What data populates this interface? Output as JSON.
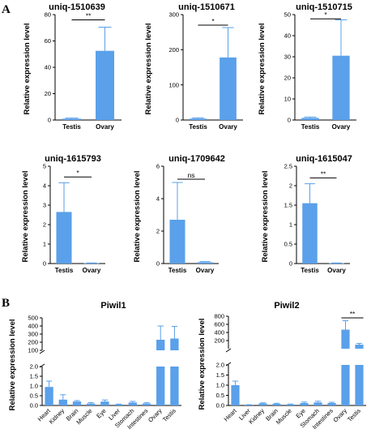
{
  "figure": {
    "panel_a": "A",
    "panel_b": "B",
    "accent": "#5aa0ea",
    "axis_color": "#000000"
  },
  "chart_data": [
    {
      "id": "a1",
      "type": "bar",
      "title": "uniq-1510639",
      "ylabel": "Relative expression level",
      "categories": [
        "Testis",
        "Ovary"
      ],
      "values": [
        1,
        52.5
      ],
      "errors": [
        0.5,
        18
      ],
      "ylim": [
        0,
        80
      ],
      "yticks": [
        0,
        20,
        40,
        60,
        80
      ],
      "significance": {
        "label": "**",
        "from": 0,
        "to": 1,
        "y": 76
      }
    },
    {
      "id": "a2",
      "type": "bar",
      "title": "uniq-1510671",
      "ylabel": "Relative expression level",
      "categories": [
        "Testis",
        "Ovary"
      ],
      "values": [
        4,
        178
      ],
      "errors": [
        2,
        85
      ],
      "ylim": [
        0,
        300
      ],
      "yticks": [
        0,
        100,
        200,
        300
      ],
      "significance": {
        "label": "*",
        "from": 0,
        "to": 1,
        "y": 270
      }
    },
    {
      "id": "a3",
      "type": "bar",
      "title": "uniq-1510715",
      "ylabel": "Relative expression level",
      "categories": [
        "Testis",
        "Ovary"
      ],
      "values": [
        1,
        30.5
      ],
      "errors": [
        0.4,
        17
      ],
      "ylim": [
        0,
        50
      ],
      "yticks": [
        0,
        10,
        20,
        30,
        40,
        50
      ],
      "significance": {
        "label": "*",
        "from": 0,
        "to": 1,
        "y": 48
      }
    },
    {
      "id": "a4",
      "type": "bar",
      "title": "uniq-1615793",
      "ylabel": "Relative expression level",
      "categories": [
        "Testis",
        "Ovary"
      ],
      "values": [
        2.65,
        0.02
      ],
      "errors": [
        1.5,
        0.01
      ],
      "ylim": [
        0,
        5
      ],
      "yticks": [
        0,
        1,
        2,
        3,
        4,
        5
      ],
      "significance": {
        "label": "*",
        "from": 0,
        "to": 1,
        "y": 4.45
      }
    },
    {
      "id": "a5",
      "type": "bar",
      "title": "uniq-1709642",
      "ylabel": "Relative expression level",
      "categories": [
        "Testis",
        "Ovary"
      ],
      "values": [
        2.7,
        0.08
      ],
      "errors": [
        2.3,
        0.04
      ],
      "ylim": [
        0,
        6
      ],
      "yticks": [
        0,
        2,
        4,
        6
      ],
      "significance": {
        "label": "ns",
        "from": 0,
        "to": 1,
        "y": 5.2
      }
    },
    {
      "id": "a6",
      "type": "bar",
      "title": "uniq-1615047",
      "ylabel": "Relative expression level",
      "categories": [
        "Testis",
        "Ovary"
      ],
      "values": [
        1.55,
        0.01
      ],
      "errors": [
        0.5,
        0.005
      ],
      "ylim": [
        0,
        2.5
      ],
      "yticks": [
        0,
        0.5,
        1.0,
        1.5,
        2.0,
        2.5
      ],
      "significance": {
        "label": "**",
        "from": 0,
        "to": 1,
        "y": 2.2
      }
    },
    {
      "id": "b1",
      "type": "bar",
      "title": "Piwil1",
      "ylabel": "Relative expression level",
      "categories": [
        "Heart",
        "Kidney",
        "Brain",
        "Muscle",
        "Eye",
        "Liver",
        "Stomach",
        "Intestines",
        "Ovary",
        "Testis"
      ],
      "values": [
        0.95,
        0.3,
        0.2,
        0.1,
        0.2,
        0.05,
        0.15,
        0.1,
        230,
        245
      ],
      "errors": [
        0.3,
        0.25,
        0.05,
        0.05,
        0.08,
        0.02,
        0.06,
        0.04,
        170,
        150
      ],
      "broken_axis": {
        "lower": [
          0,
          2.0
        ],
        "upper": [
          100,
          500
        ],
        "lower_ticks": [
          0,
          0.5,
          1.0,
          1.5,
          2.0
        ],
        "upper_ticks": [
          100,
          200,
          300,
          400,
          500
        ]
      }
    },
    {
      "id": "b2",
      "type": "bar",
      "title": "Piwil2",
      "ylabel": "Relative expression level",
      "categories": [
        "Heart",
        "Liver",
        "Kidney",
        "Brain",
        "Muscle",
        "Eye",
        "Stomach",
        "Intestines",
        "Ovary",
        "Testis"
      ],
      "values": [
        1.0,
        0.03,
        0.1,
        0.08,
        0.05,
        0.12,
        0.15,
        0.12,
        470,
        100
      ],
      "errors": [
        0.2,
        0.01,
        0.03,
        0.03,
        0.02,
        0.05,
        0.06,
        0.04,
        220,
        30
      ],
      "broken_axis": {
        "lower": [
          0,
          2.0
        ],
        "upper": [
          0,
          800
        ],
        "lower_ticks": [
          0,
          0.5,
          1.0,
          1.5,
          2.0
        ],
        "upper_ticks": [
          200,
          400,
          600,
          800
        ]
      },
      "significance": {
        "label": "**",
        "from": 8,
        "to": 9,
        "y": 760
      }
    }
  ]
}
